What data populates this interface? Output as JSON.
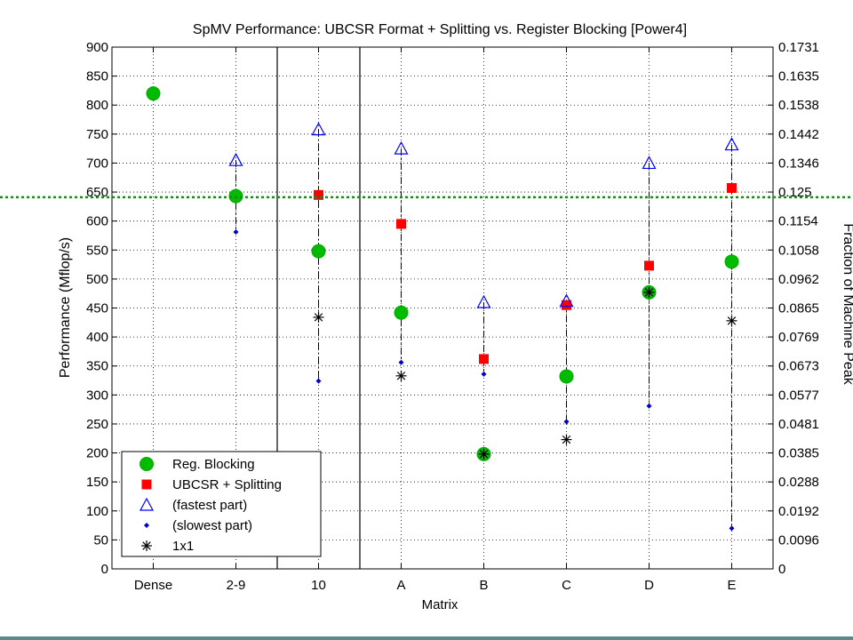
{
  "chart_data": {
    "type": "scatter",
    "title": "SpMV Performance: UBCSR Format + Splitting vs. Register Blocking [Power4]",
    "xlabel": "Matrix",
    "ylabel": "Performance (Mflop/s)",
    "y2label": "Fraction of Machine Peak",
    "categories": [
      "Dense",
      "2-9",
      "10",
      "A",
      "B",
      "C",
      "D",
      "E"
    ],
    "ylim": [
      0,
      900
    ],
    "yticks": [
      0,
      50,
      100,
      150,
      200,
      250,
      300,
      350,
      400,
      450,
      500,
      550,
      600,
      650,
      700,
      750,
      800,
      850,
      900
    ],
    "y2ticks": [
      "0",
      "0.0096",
      "0.0192",
      "0.0288",
      "0.0385",
      "0.0481",
      "0.0577",
      "0.0673",
      "0.0769",
      "0.0865",
      "0.0962",
      "0.1058",
      "0.1154",
      "0.125",
      "0.1346",
      "0.1442",
      "0.1538",
      "0.1635",
      "0.1731"
    ],
    "grid": true,
    "legend_position": "bottom-left",
    "separators_after_categories": [
      "2-9",
      "10"
    ],
    "reference_line": {
      "y": 641,
      "color": "#1a8a1a",
      "style": "dotted"
    },
    "series": [
      {
        "name": "Reg. Blocking",
        "marker": "circle",
        "color": "#00bb00",
        "values": [
          820,
          643,
          548,
          442,
          198,
          332,
          477,
          530
        ]
      },
      {
        "name": "UBCSR + Splitting",
        "marker": "square",
        "color": "#ff0000",
        "values": [
          null,
          null,
          645,
          595,
          362,
          455,
          523,
          657
        ]
      },
      {
        "name": "(fastest part)",
        "marker": "triangle",
        "color": "#0000ff",
        "values": [
          null,
          705,
          758,
          725,
          460,
          462,
          700,
          732
        ]
      },
      {
        "name": "(slowest part)",
        "marker": "dot",
        "color": "#0000cc",
        "values": [
          null,
          581,
          324,
          356,
          336,
          254,
          281,
          70
        ]
      },
      {
        "name": "1x1",
        "marker": "star",
        "color": "#000000",
        "values": [
          null,
          null,
          434,
          333,
          198,
          223,
          477,
          428
        ]
      }
    ]
  }
}
